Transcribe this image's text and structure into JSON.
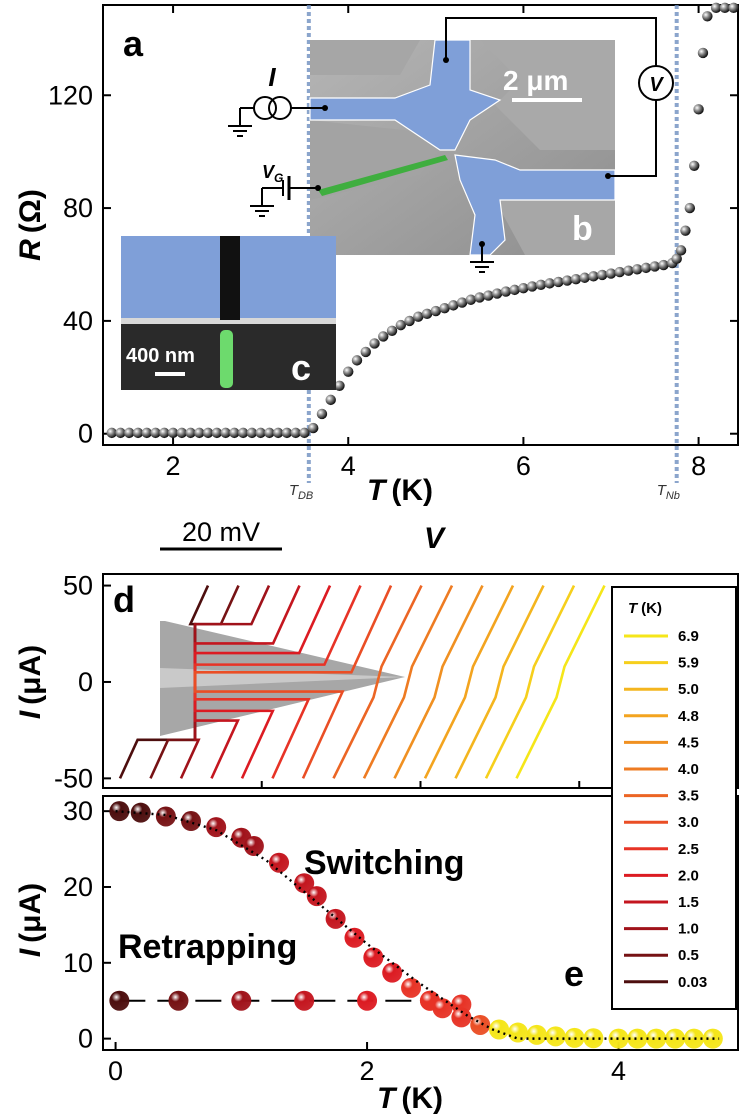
{
  "colors": {
    "sem_gray": "#9a9a9a",
    "sem_blue": "#7f9fd8",
    "sem_green": "#3fae3f",
    "dash_blue": "#6f8fc0"
  },
  "chart_data": [
    {
      "panel": "a",
      "type": "scatter",
      "xlabel_sym": "T",
      "xlabel_unit": "(K)",
      "ylabel_sym": "R",
      "ylabel_unit": "(Ω)",
      "xlim": [
        1.2,
        8.45
      ],
      "ylim": [
        -4,
        152
      ],
      "xticks": [
        "2",
        "4",
        "6",
        "8"
      ],
      "yticks": [
        "0",
        "40",
        "80",
        "120"
      ],
      "markers": [
        {
          "x": 3.55,
          "base": "T",
          "sub": "DB"
        },
        {
          "x": 7.75,
          "base": "T",
          "sub": "Nb"
        }
      ],
      "x": [
        1.3,
        1.4,
        1.5,
        1.6,
        1.7,
        1.8,
        1.9,
        2.0,
        2.1,
        2.2,
        2.3,
        2.4,
        2.5,
        2.6,
        2.7,
        2.8,
        2.9,
        3.0,
        3.1,
        3.2,
        3.3,
        3.4,
        3.5,
        3.6,
        3.7,
        3.8,
        3.9,
        4.0,
        4.1,
        4.2,
        4.3,
        4.4,
        4.5,
        4.6,
        4.7,
        4.8,
        4.9,
        5.0,
        5.1,
        5.2,
        5.3,
        5.4,
        5.5,
        5.6,
        5.7,
        5.8,
        5.9,
        6.0,
        6.1,
        6.2,
        6.3,
        6.4,
        6.5,
        6.6,
        6.7,
        6.8,
        6.9,
        7.0,
        7.1,
        7.2,
        7.3,
        7.4,
        7.5,
        7.6,
        7.7,
        7.75,
        7.8,
        7.85,
        7.9,
        7.95,
        8.0,
        8.05,
        8.1,
        8.2,
        8.3,
        8.4
      ],
      "y": [
        0.3,
        0.3,
        0.3,
        0.3,
        0.3,
        0.3,
        0.3,
        0.3,
        0.3,
        0.3,
        0.3,
        0.3,
        0.3,
        0.3,
        0.3,
        0.3,
        0.3,
        0.3,
        0.3,
        0.3,
        0.3,
        0.3,
        0.3,
        2,
        7,
        12,
        17,
        22,
        26,
        29,
        32,
        34.5,
        36.5,
        38.5,
        40,
        41.5,
        42.5,
        43.5,
        44.5,
        45.5,
        46.5,
        47.5,
        48.3,
        49,
        49.7,
        50.4,
        51,
        51.6,
        52.2,
        52.8,
        53.3,
        53.8,
        54.3,
        54.8,
        55.3,
        55.8,
        56.3,
        56.8,
        57.3,
        57.8,
        58.3,
        58.8,
        59.3,
        59.8,
        60.5,
        62,
        65,
        72,
        80,
        95,
        115,
        135,
        148,
        151,
        151,
        151
      ]
    },
    {
      "panel": "d",
      "type": "line",
      "xlabel_sym": "V",
      "scalebar_label": "20 mV",
      "ylabel_sym": "I",
      "ylabel_unit": "(μA)",
      "ylim": [
        -55,
        56
      ],
      "yticks": [
        "-50",
        "0",
        "50"
      ],
      "legend_title_sym": "T",
      "legend_title_unit": "(K)",
      "legend_position": "right",
      "series": [
        {
          "name": "6.9",
          "color": "#f5e619"
        },
        {
          "name": "5.9",
          "color": "#f6cf1c"
        },
        {
          "name": "5.0",
          "color": "#f4b51e"
        },
        {
          "name": "4.8",
          "color": "#f3a41f"
        },
        {
          "name": "4.5",
          "color": "#f09021"
        },
        {
          "name": "4.0",
          "color": "#ee7b22"
        },
        {
          "name": "3.5",
          "color": "#ec6524"
        },
        {
          "name": "3.0",
          "color": "#ea4e25"
        },
        {
          "name": "2.5",
          "color": "#e73326"
        },
        {
          "name": "2.0",
          "color": "#dc1b22"
        },
        {
          "name": "1.5",
          "color": "#c4161f"
        },
        {
          "name": "1.0",
          "color": "#a0121a"
        },
        {
          "name": "0.5",
          "color": "#761214"
        },
        {
          "name": "0.03",
          "color": "#4d0e0e"
        }
      ]
    },
    {
      "panel": "e",
      "type": "scatter",
      "xlabel_sym": "T",
      "xlabel_unit": "(K)",
      "ylabel_sym": "I",
      "ylabel_unit": "(μA)",
      "xlim": [
        -0.1,
        4.95
      ],
      "ylim": [
        -1.5,
        32
      ],
      "xticks": [
        "0",
        "2",
        "4"
      ],
      "yticks": [
        "0",
        "10",
        "20",
        "30"
      ],
      "annotations": [
        "Switching",
        "Retrapping"
      ],
      "switching": {
        "x": [
          0.03,
          0.2,
          0.4,
          0.6,
          0.8,
          1.0,
          1.1,
          1.3,
          1.5,
          1.6,
          1.75,
          1.9,
          2.05,
          2.2,
          2.35,
          2.5,
          2.6,
          2.75,
          2.9,
          3.05,
          3.2,
          3.35,
          3.5,
          3.65,
          3.8,
          4.0,
          4.15,
          4.3,
          4.45,
          4.6,
          4.75
        ],
        "y": [
          30,
          29.8,
          29.3,
          28.7,
          27.9,
          26.5,
          25.4,
          23.2,
          20.5,
          18.8,
          15.8,
          13.3,
          10.7,
          8.7,
          6.7,
          5.0,
          4.0,
          2.8,
          1.8,
          1.2,
          0.8,
          0.5,
          0.3,
          0.1,
          0.05,
          0,
          0,
          0,
          0,
          0,
          0
        ]
      },
      "retrapping": {
        "x": [
          0.03,
          0.5,
          1.0,
          1.5,
          2.0,
          2.5,
          2.75
        ],
        "y": [
          5,
          5,
          5,
          5,
          5,
          5,
          4.5
        ]
      },
      "fit": {
        "x": [
          0,
          0.4,
          0.8,
          1.2,
          1.6,
          2.0,
          2.4,
          2.8,
          3.0,
          3.2,
          3.6,
          4.0,
          4.8
        ],
        "y": [
          30,
          29.5,
          27.5,
          23.5,
          18,
          12.5,
          7.5,
          3,
          1.2,
          0,
          0,
          0,
          0
        ]
      }
    }
  ],
  "insets": {
    "b": {
      "label": "b",
      "scalebar": "2 μm",
      "current_label": "I",
      "voltmeter_label": "V",
      "gate_base": "V",
      "gate_sub": "G"
    },
    "c": {
      "label": "c",
      "scalebar": "400 nm"
    }
  },
  "panel_labels": {
    "a": "a",
    "d": "d",
    "e": "e"
  }
}
